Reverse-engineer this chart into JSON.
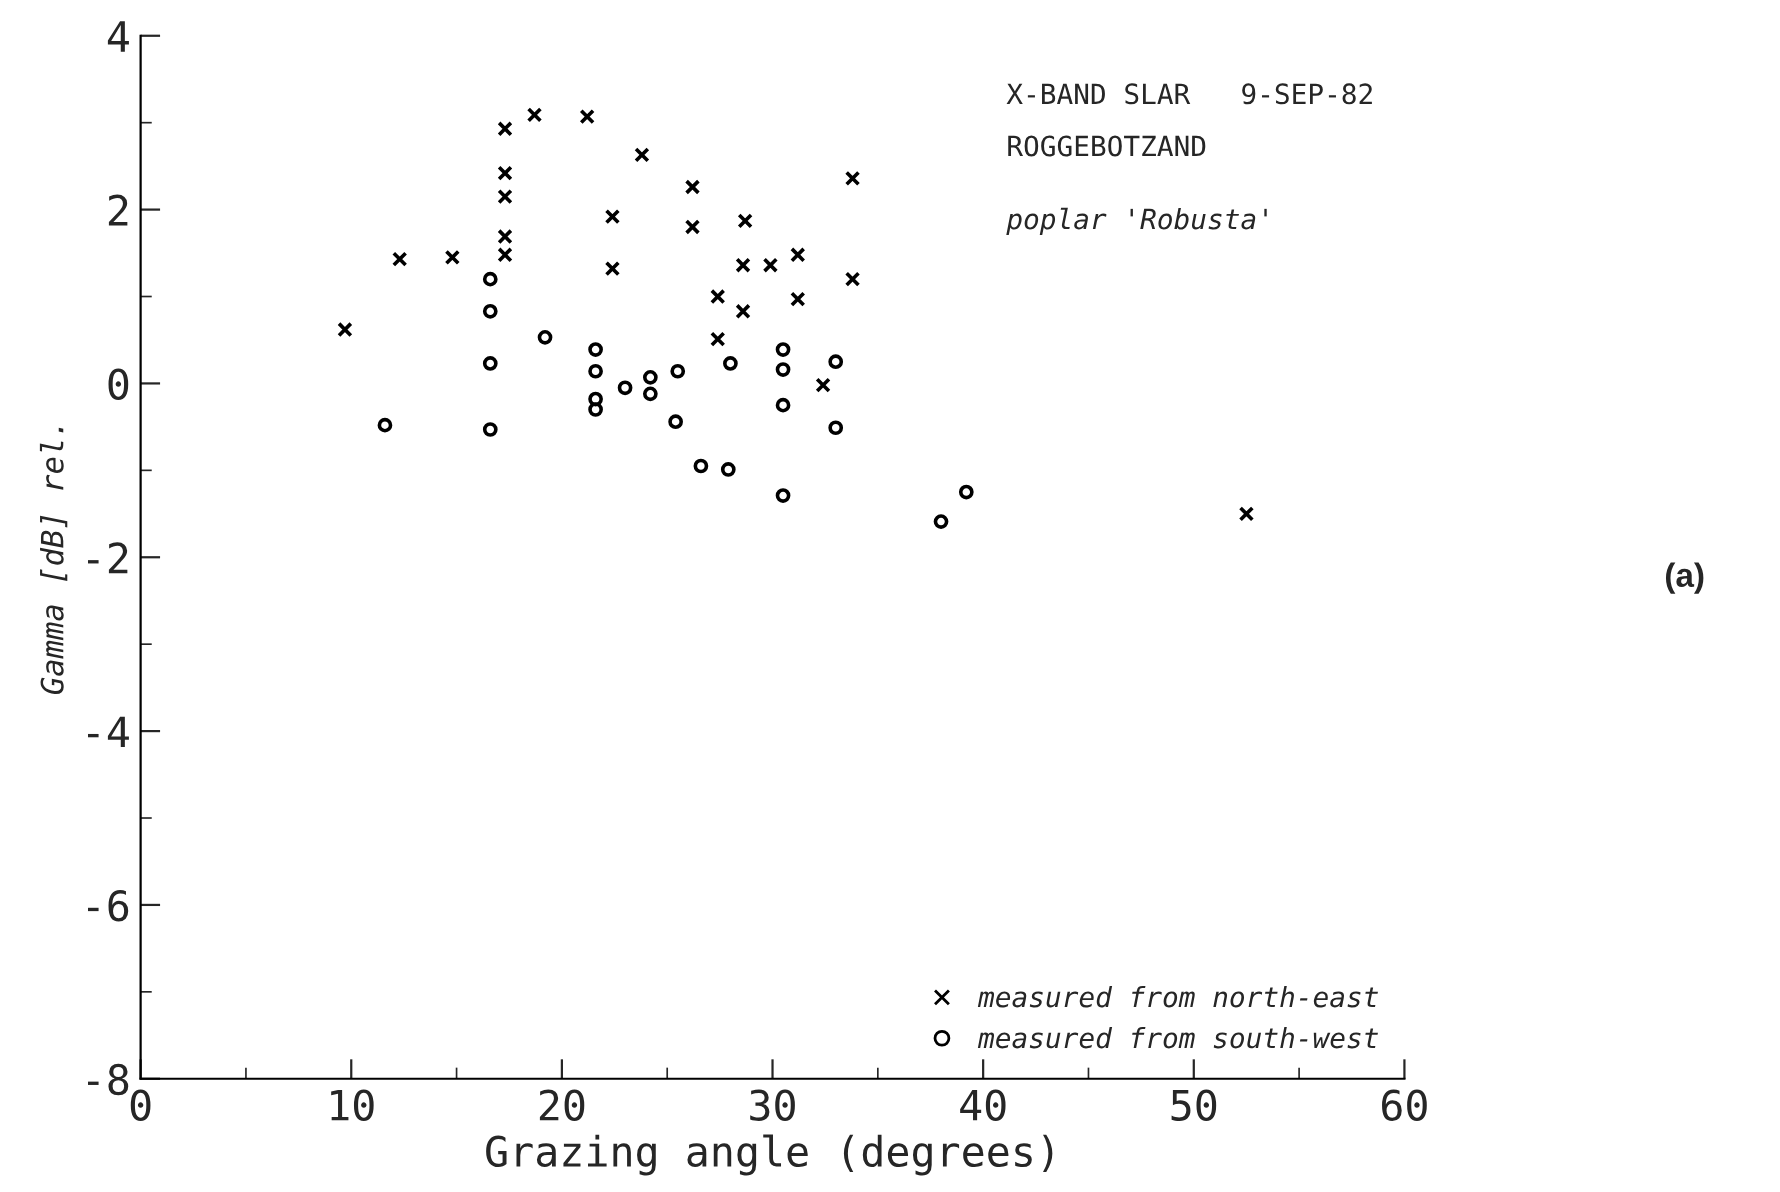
{
  "chart_data": {
    "type": "scatter",
    "xlabel": "Grazing angle (degrees)",
    "ylabel": "Gamma [dB] rel.",
    "annotations": [
      "X-BAND SLAR   9-SEP-82",
      "ROGGEBOTZAND",
      "poplar 'Robusta'",
      "(a)"
    ],
    "series": [
      {
        "name": "measured from north-east",
        "color": "#000000",
        "marker": "cross",
        "x": [
          17.3,
          18.7,
          21.2,
          23.8,
          26.2,
          33.8,
          17.3,
          17.3,
          22.4,
          26.2,
          28.7,
          17.3,
          17.3,
          22.4,
          28.6,
          29.9,
          31.2,
          33.8,
          27.4,
          28.6,
          31.2,
          27.4,
          32.4,
          12.3,
          14.8,
          9.7,
          52.5
        ],
        "values": [
          2.93,
          3.09,
          3.07,
          2.63,
          2.26,
          2.36,
          2.42,
          2.15,
          1.92,
          1.8,
          1.87,
          1.69,
          1.48,
          1.32,
          1.36,
          1.36,
          1.48,
          1.2,
          1.0,
          0.83,
          0.97,
          0.51,
          -0.02,
          1.43,
          1.45,
          0.62,
          -1.5
        ]
      },
      {
        "name": "measured from south-west",
        "color": "#000000",
        "marker": "circle",
        "x": [
          16.6,
          16.6,
          19.2,
          16.6,
          16.6,
          21.6,
          21.6,
          21.6,
          21.6,
          23.0,
          24.2,
          24.2,
          25.5,
          25.4,
          26.6,
          27.9,
          28.0,
          30.5,
          30.5,
          30.5,
          30.5,
          33.0,
          33.0,
          39.2,
          38.0,
          11.6
        ],
        "values": [
          1.2,
          0.83,
          0.53,
          0.23,
          -0.53,
          0.39,
          0.14,
          -0.18,
          -0.3,
          -0.05,
          0.07,
          -0.12,
          0.14,
          -0.44,
          -0.95,
          -0.99,
          0.23,
          0.39,
          0.16,
          -0.25,
          -1.29,
          0.25,
          -0.51,
          -1.25,
          -1.59,
          -0.48
        ]
      }
    ],
    "xlim": [
      0,
      60
    ],
    "xticks": [
      0,
      10,
      20,
      30,
      40,
      50,
      60
    ],
    "ylim": [
      -8,
      4
    ],
    "yticks": [
      -8,
      -6,
      -4,
      -2,
      0,
      2,
      4
    ],
    "grid": false,
    "legend": "bottom right"
  }
}
